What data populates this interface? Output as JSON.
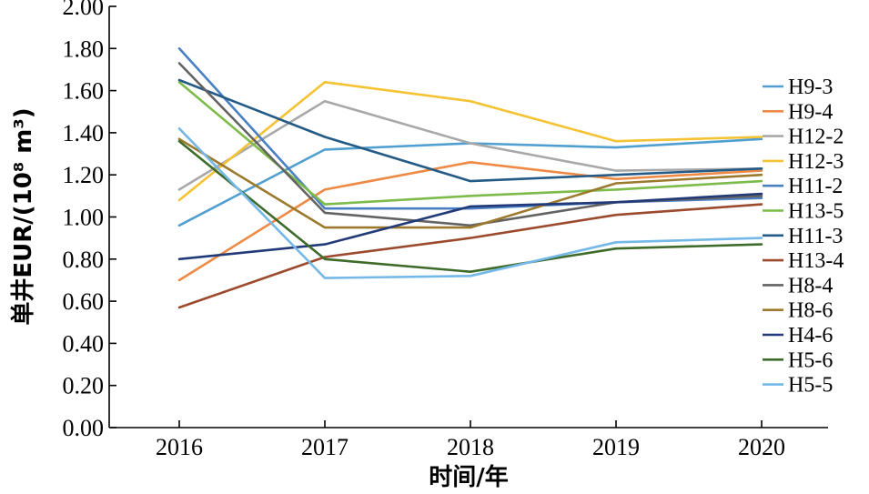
{
  "chart_data": {
    "type": "line",
    "xlabel": "时间/年",
    "ylabel": "单井EUR/(10⁸ m³)",
    "x": [
      2016,
      2017,
      2018,
      2019,
      2020
    ],
    "ylim": [
      0,
      2.0
    ],
    "y_ticks": [
      "0.00",
      "0.20",
      "0.40",
      "0.60",
      "0.80",
      "1.00",
      "1.20",
      "1.40",
      "1.60",
      "1.80",
      "2.00"
    ],
    "x_ticks": [
      "2016",
      "2017",
      "2018",
      "2019",
      "2020"
    ],
    "grid": false,
    "legend_position": "right",
    "series": [
      {
        "name": "H9-3",
        "color": "#4f9fd0",
        "values": [
          0.96,
          1.32,
          1.35,
          1.33,
          1.37
        ]
      },
      {
        "name": "H9-4",
        "color": "#ee8a45",
        "values": [
          0.7,
          1.13,
          1.26,
          1.18,
          1.22
        ]
      },
      {
        "name": "H12-2",
        "color": "#a8a8a8",
        "values": [
          1.13,
          1.55,
          1.35,
          1.22,
          1.23
        ]
      },
      {
        "name": "H12-3",
        "color": "#f4c232",
        "values": [
          1.08,
          1.64,
          1.55,
          1.36,
          1.38
        ]
      },
      {
        "name": "H11-2",
        "color": "#4a7fc1",
        "values": [
          1.8,
          1.04,
          1.04,
          1.07,
          1.09
        ]
      },
      {
        "name": "H13-5",
        "color": "#7dbb4a",
        "values": [
          1.64,
          1.06,
          1.1,
          1.13,
          1.17
        ]
      },
      {
        "name": "H11-3",
        "color": "#245a86",
        "values": [
          1.65,
          1.38,
          1.17,
          1.2,
          1.23
        ]
      },
      {
        "name": "H13-4",
        "color": "#9c4a2d",
        "values": [
          0.57,
          0.81,
          0.9,
          1.01,
          1.06
        ]
      },
      {
        "name": "H8-4",
        "color": "#636363",
        "values": [
          1.73,
          1.02,
          0.96,
          1.07,
          1.1
        ]
      },
      {
        "name": "H8-6",
        "color": "#9b7a2d",
        "values": [
          1.37,
          0.95,
          0.95,
          1.16,
          1.2
        ]
      },
      {
        "name": "H4-6",
        "color": "#233a78",
        "values": [
          0.8,
          0.87,
          1.05,
          1.07,
          1.11
        ]
      },
      {
        "name": "H5-6",
        "color": "#3e6b2a",
        "values": [
          1.36,
          0.8,
          0.74,
          0.85,
          0.87
        ]
      },
      {
        "name": "H5-5",
        "color": "#74b8e8",
        "values": [
          1.42,
          0.71,
          0.72,
          0.88,
          0.9
        ]
      }
    ]
  }
}
